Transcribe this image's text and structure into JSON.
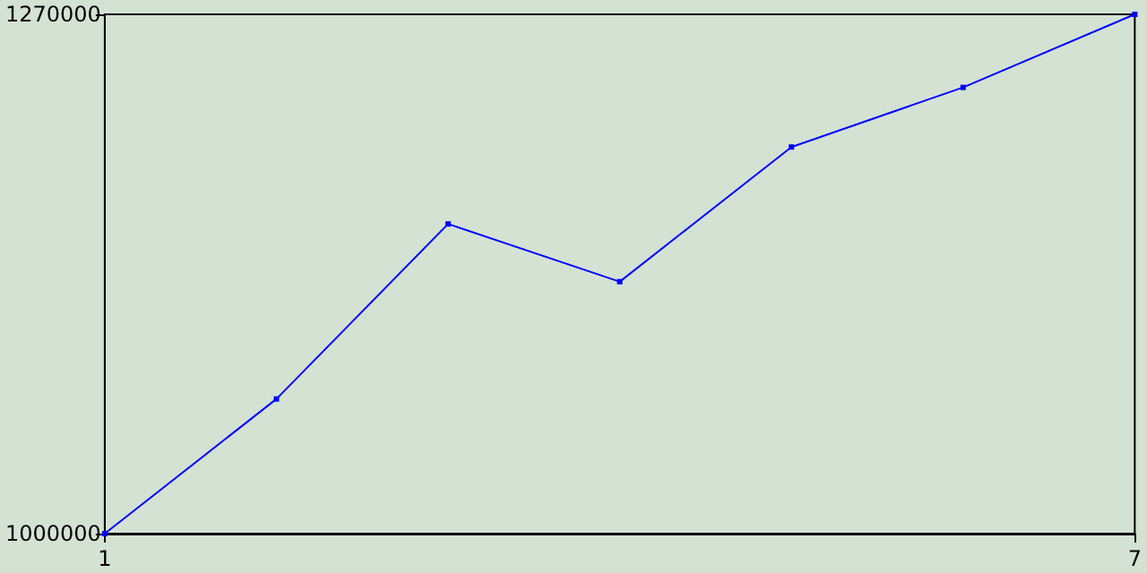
{
  "chart_data": {
    "type": "line",
    "x": [
      1,
      2,
      3,
      4,
      5,
      6,
      7
    ],
    "series": [
      {
        "color": "#0000ff",
        "values": [
          1000000,
          1070000,
          1161000,
          1131000,
          1201000,
          1232000,
          1270000
        ]
      }
    ],
    "xlim": [
      1,
      7
    ],
    "xticks": [
      1,
      7
    ],
    "ylim": [
      1000000,
      1270000
    ],
    "yticks": [
      1000000,
      1270000
    ],
    "grid": false,
    "marker": "square",
    "line_style": "solid"
  }
}
